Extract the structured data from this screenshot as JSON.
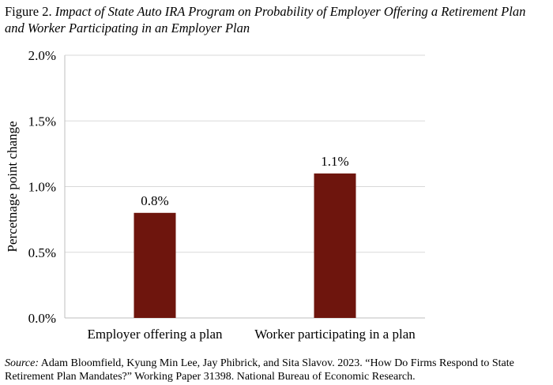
{
  "figure": {
    "number": "Figure 2.",
    "title": "Impact of State Auto IRA Program on Probability of Employer Offering a Retirement Plan and Worker Participating in an Employer Plan"
  },
  "source": {
    "label": "Source:",
    "text": "Adam Bloomfield, Kyung Min Lee, Jay Phibrick, and Sita Slavov. 2023. “How Do Firms Respond to State Retirement Plan Mandates?” Working Paper 31398. National Bureau of Economic Research."
  },
  "colors": {
    "bar": "#6e150d",
    "grid": "#d9d9d9",
    "axis": "#bfbfbf"
  },
  "chart_data": {
    "type": "bar",
    "categories": [
      "Employer offering a plan",
      "Worker participating in a plan"
    ],
    "values": [
      0.8,
      1.1
    ],
    "data_labels": [
      "0.8%",
      "1.1%"
    ],
    "xlabel": "",
    "ylabel": "Percetnage point change",
    "ylim": [
      0,
      2.0
    ],
    "yticks": [
      0.0,
      0.5,
      1.0,
      1.5,
      2.0
    ],
    "ytick_labels": [
      "0.0%",
      "0.5%",
      "1.0%",
      "1.5%",
      "2.0%"
    ],
    "grid": true,
    "legend": "none"
  }
}
